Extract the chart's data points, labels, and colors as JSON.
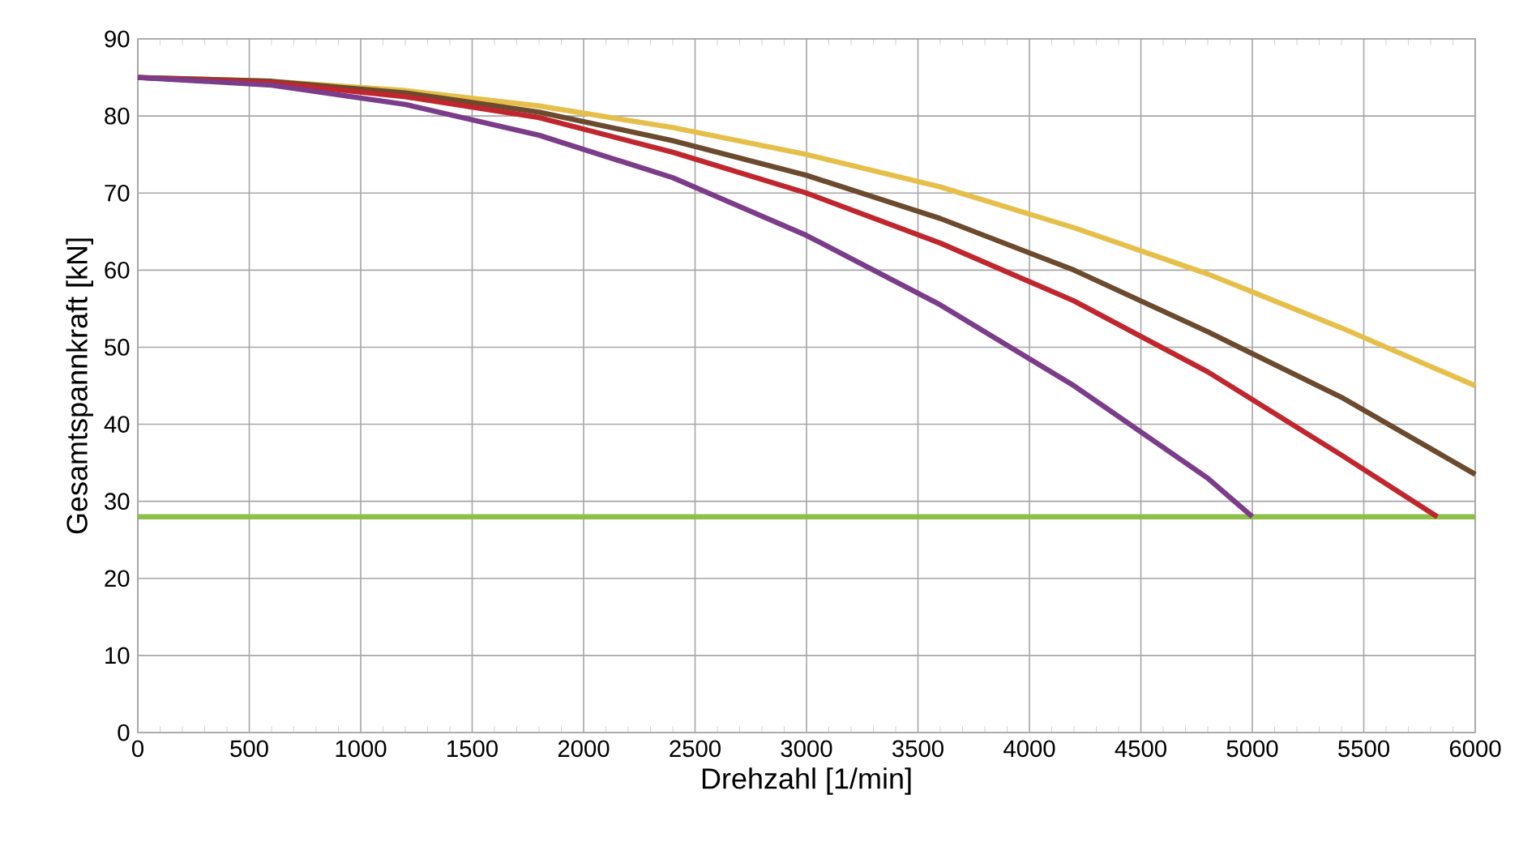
{
  "chart_data": {
    "type": "line",
    "xlabel": "Drehzahl [1/min]",
    "ylabel": "Gesamtspannkraft [kN]",
    "xlim": [
      0,
      6000
    ],
    "ylim": [
      0,
      90
    ],
    "xticks": [
      0,
      500,
      1000,
      1500,
      2000,
      2500,
      3000,
      3500,
      4000,
      4500,
      5000,
      5500,
      6000
    ],
    "yticks": [
      0,
      10,
      20,
      30,
      40,
      50,
      60,
      70,
      80,
      90
    ],
    "grid": true,
    "marker": "none",
    "line_style": "solid",
    "series": [
      {
        "color": "#e6bf4a",
        "x": [
          0,
          600,
          1200,
          1800,
          2400,
          3000,
          3600,
          4200,
          4800,
          5400,
          6000
        ],
        "values": [
          85,
          84.5,
          83.3,
          81.3,
          78.5,
          75,
          70.8,
          65.5,
          59.5,
          52.5,
          45
        ]
      },
      {
        "color": "#6b4a2e",
        "x": [
          0,
          600,
          1200,
          1800,
          2400,
          3000,
          3600,
          4200,
          4800,
          5400,
          6000
        ],
        "values": [
          85,
          84.5,
          83,
          80.5,
          76.8,
          72.3,
          66.7,
          60,
          52,
          43.5,
          33.5
        ]
      },
      {
        "color": "#c0262d",
        "x": [
          0,
          600,
          1200,
          1800,
          2400,
          3000,
          3600,
          4200,
          4800,
          5400,
          5830
        ],
        "values": [
          85,
          84.3,
          82.5,
          79.8,
          75.3,
          70,
          63.5,
          56,
          46.8,
          36,
          28
        ]
      },
      {
        "color": "#7b3c8a",
        "x": [
          0,
          600,
          1200,
          1800,
          2400,
          3000,
          3600,
          4200,
          4800,
          5000
        ],
        "values": [
          85,
          84,
          81.5,
          77.5,
          72,
          64.5,
          55.5,
          45,
          33,
          28
        ]
      }
    ],
    "ref_lines": [
      {
        "axis": "y",
        "value": 28,
        "color": "#8cc04a"
      }
    ]
  }
}
